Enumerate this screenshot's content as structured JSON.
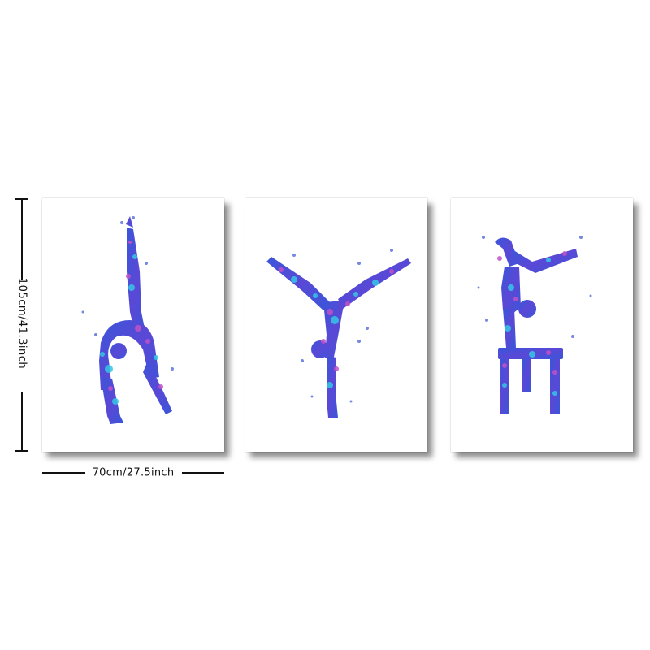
{
  "dimensions": {
    "height_label": "105cm/41.3inch",
    "width_label": "70cm/27.5inch"
  },
  "panels": [
    {
      "subject": "gymnast backbend silhouette",
      "colors": [
        "#3a56d8",
        "#36c6e6",
        "#c251c9"
      ]
    },
    {
      "subject": "gymnast handstand split silhouette",
      "colors": [
        "#3a56d8",
        "#36c6e6",
        "#c251c9"
      ]
    },
    {
      "subject": "gymnast handstand on beam silhouette",
      "colors": [
        "#3a56d8",
        "#36c6e6",
        "#c251c9"
      ]
    }
  ],
  "colors": {
    "primary_blue": "#3a56d8",
    "cyan": "#36c6e6",
    "magenta": "#c251c9",
    "line": "#111111"
  }
}
